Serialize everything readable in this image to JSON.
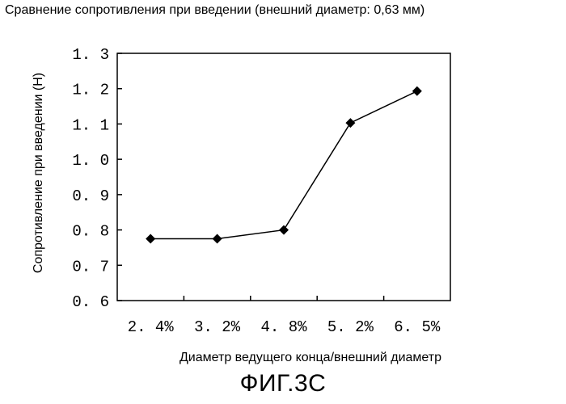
{
  "chart_data": {
    "type": "line",
    "title": "Сравнение сопротивления при введении (внешний диаметр: 0,63 мм)",
    "xlabel": "Диаметр ведущего конца/внешний диаметр",
    "ylabel": "Сопротивление при введении (Н)",
    "categories": [
      "2. 4%",
      "3. 2%",
      "4. 8%",
      "5. 2%",
      "6. 5%"
    ],
    "series": [
      {
        "values": [
          0.775,
          0.775,
          0.8,
          1.103,
          1.193
        ]
      }
    ],
    "ylim": [
      0.6,
      1.3
    ],
    "yticks": [
      "0. 6",
      "0. 7",
      "0. 8",
      "0. 9",
      "1. 0",
      "1. 1",
      "1. 2",
      "1. 3"
    ],
    "ytick_values": [
      0.6,
      0.7,
      0.8,
      0.9,
      1.0,
      1.1,
      1.2,
      1.3
    ],
    "marker": "diamond",
    "grid": false,
    "line_color": "#000000"
  },
  "figure_caption": "ФИГ.3С"
}
